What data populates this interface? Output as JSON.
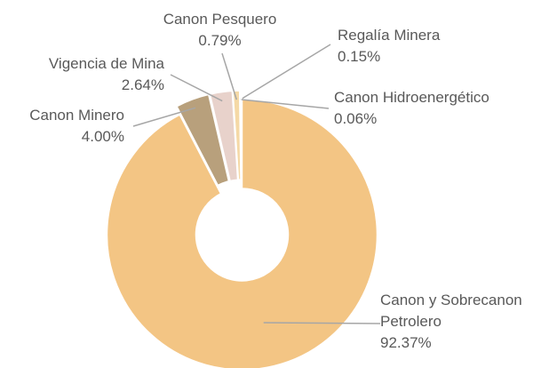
{
  "chart_data": {
    "type": "donut",
    "categories": [
      "Canon y Sobrecanon Petrolero",
      "Canon Minero",
      "Vigencia de Mina",
      "Canon Pesquero",
      "Regalía Minera",
      "Canon Hidroenergético"
    ],
    "values": [
      92.37,
      4.0,
      2.64,
      0.79,
      0.15,
      0.06
    ],
    "value_labels": [
      "92.37%",
      "4.00%",
      "2.64%",
      "0.79%",
      "0.15%",
      "0.06%"
    ],
    "colors": [
      "#f3c584",
      "#b8a07c",
      "#e8d2cb",
      "#f5d9a6",
      "#c98a2c",
      "#8a6a3c"
    ]
  }
}
